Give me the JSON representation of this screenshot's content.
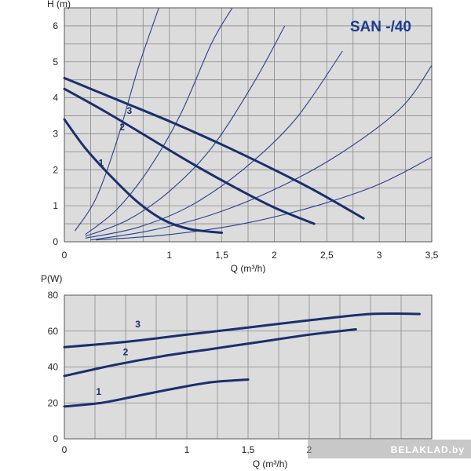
{
  "chart_data": [
    {
      "type": "line",
      "title": "SAN -/40",
      "xlabel": "Q (m³/h)",
      "ylabel": "H (m)",
      "xlim": [
        0,
        3.5
      ],
      "ylim": [
        0,
        6.5
      ],
      "x_ticks": [
        "0",
        "1",
        "1,5",
        "2",
        "2,5",
        "3",
        "3,5"
      ],
      "y_ticks": [
        "0",
        "1",
        "2",
        "3",
        "4",
        "5",
        "6"
      ],
      "grid": true,
      "background": "#dcdcdc",
      "curve_color": "#1b2f6e",
      "system_color": "#2a3f8f",
      "series": [
        {
          "name": "1",
          "x": [
            0,
            0.2,
            0.45,
            0.7,
            0.95,
            1.2,
            1.5
          ],
          "y": [
            3.4,
            2.6,
            1.8,
            1.1,
            0.6,
            0.35,
            0.25
          ]
        },
        {
          "name": "2",
          "x": [
            0,
            0.4,
            0.8,
            1.2,
            1.6,
            2.0,
            2.38
          ],
          "y": [
            4.25,
            3.6,
            2.9,
            2.2,
            1.55,
            0.95,
            0.5
          ]
        },
        {
          "name": "3",
          "x": [
            0,
            0.5,
            1.0,
            1.5,
            2.0,
            2.4,
            2.85
          ],
          "y": [
            4.55,
            3.95,
            3.35,
            2.7,
            2.0,
            1.4,
            0.65
          ]
        }
      ],
      "system_curves": [
        {
          "x": [
            0.1,
            0.3,
            0.5,
            0.7,
            0.9
          ],
          "y": [
            0.3,
            1.2,
            2.8,
            4.8,
            6.5
          ]
        },
        {
          "x": [
            0.2,
            0.5,
            0.8,
            1.1,
            1.4,
            1.6
          ],
          "y": [
            0.2,
            0.9,
            2.0,
            3.5,
            5.5,
            6.5
          ]
        },
        {
          "x": [
            0.2,
            0.6,
            1.0,
            1.4,
            1.8,
            2.1
          ],
          "y": [
            0.15,
            0.6,
            1.4,
            2.6,
            4.4,
            6.0
          ]
        },
        {
          "x": [
            0.2,
            0.7,
            1.2,
            1.7,
            2.2,
            2.65
          ],
          "y": [
            0.1,
            0.4,
            1.0,
            2.0,
            3.4,
            5.3
          ]
        },
        {
          "x": [
            0.25,
            0.8,
            1.4,
            2.0,
            2.6,
            3.2,
            3.5
          ],
          "y": [
            0.05,
            0.3,
            0.75,
            1.45,
            2.4,
            3.7,
            4.9
          ]
        },
        {
          "x": [
            0.3,
            1.0,
            1.7,
            2.4,
            3.0,
            3.5
          ],
          "y": [
            0.05,
            0.2,
            0.5,
            1.0,
            1.6,
            2.35
          ]
        }
      ]
    },
    {
      "type": "line",
      "xlabel": "Q (m³/h)",
      "ylabel": "P(W)",
      "xlim": [
        0,
        3
      ],
      "ylim": [
        0,
        80
      ],
      "x_ticks": [
        "0",
        "1",
        "1,5",
        "2"
      ],
      "y_ticks": [
        "0",
        "20",
        "40",
        "60",
        "80"
      ],
      "grid": true,
      "background": "#dcdcdc",
      "curve_color": "#1b2f6e",
      "series": [
        {
          "name": "1",
          "x": [
            0,
            0.3,
            0.6,
            0.9,
            1.2,
            1.5
          ],
          "y": [
            18,
            20,
            24,
            28,
            31.5,
            33
          ]
        },
        {
          "name": "2",
          "x": [
            0,
            0.4,
            0.8,
            1.2,
            1.6,
            2.0,
            2.38
          ],
          "y": [
            35,
            41,
            46,
            50,
            54,
            58,
            61
          ]
        },
        {
          "name": "3",
          "x": [
            0,
            0.5,
            1.0,
            1.5,
            2.0,
            2.5,
            2.9
          ],
          "y": [
            51,
            54,
            58,
            62,
            66,
            69.5,
            69.5
          ]
        }
      ]
    }
  ],
  "watermark": "BELAKLAD.by"
}
